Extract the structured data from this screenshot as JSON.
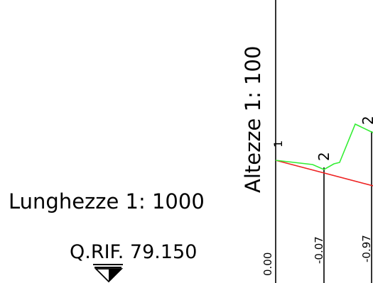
{
  "labels": {
    "scale_lengths": "Lunghezze 1: 1000",
    "scale_heights": "Altezze 1: 100",
    "reference_quota": "Q.RIF. 79.150"
  },
  "sections": [
    {
      "id": "1",
      "value_label": "0.00"
    },
    {
      "id": "2",
      "value_label": "-0.07"
    },
    {
      "id": "2",
      "value_label": "-0.97"
    }
  ],
  "colors": {
    "terrain_line": "#33ee33",
    "design_line": "#ee2222",
    "ink": "#000000"
  }
}
